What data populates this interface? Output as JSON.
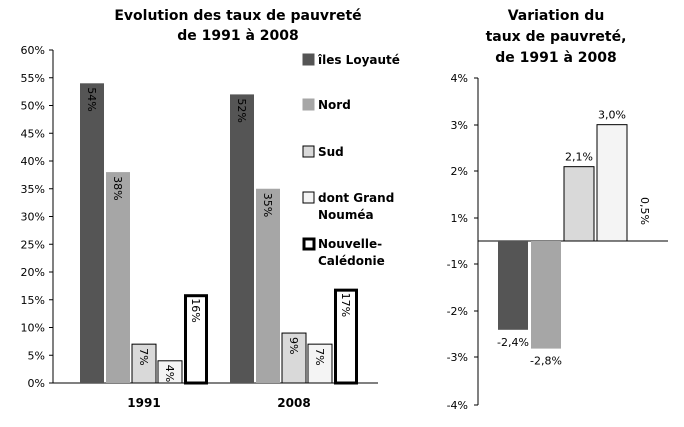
{
  "chart_data": [
    {
      "type": "bar",
      "title_lines": [
        "Evolution des taux de pauvreté",
        "de 1991 à 2008"
      ],
      "categories": [
        "1991",
        "2008"
      ],
      "ylim": [
        0,
        60
      ],
      "yticks": [
        "0%",
        "5%",
        "10%",
        "15%",
        "20%",
        "25%",
        "30%",
        "35%",
        "40%",
        "45%",
        "50%",
        "55%",
        "60%"
      ],
      "legend_position": "right",
      "series": [
        {
          "name": "îles Loyauté",
          "legend_lines": [
            "îles Loyauté"
          ],
          "color": "#555555",
          "style": "dark",
          "values": [
            54,
            52
          ],
          "labels": [
            "54%",
            "52%"
          ]
        },
        {
          "name": "Nord",
          "legend_lines": [
            "Nord"
          ],
          "color": "#a6a6a6",
          "style": "mid",
          "values": [
            38,
            35
          ],
          "labels": [
            "38%",
            "35%"
          ]
        },
        {
          "name": "Sud",
          "legend_lines": [
            "Sud"
          ],
          "color": "#d9d9d9",
          "style": "light",
          "values": [
            7,
            9
          ],
          "labels": [
            "7%",
            "9%"
          ]
        },
        {
          "name": "dont Grand Nouméa",
          "legend_lines": [
            "dont Grand",
            "Nouméa"
          ],
          "color": "#f4f4f4",
          "style": "white",
          "values": [
            4,
            7
          ],
          "labels": [
            "4%",
            "7%"
          ]
        },
        {
          "name": "Nouvelle-Calédonie",
          "legend_lines": [
            "Nouvelle-",
            "Calédonie"
          ],
          "color": "#ffffff",
          "style": "bold",
          "values": [
            16,
            17
          ],
          "labels": [
            "16%",
            "17%"
          ]
        }
      ]
    },
    {
      "type": "bar",
      "title_lines": [
        "Variation du",
        "taux de pauvreté,",
        "de 1991 à 2008"
      ],
      "yticks": [
        "-4%",
        "-3%",
        "-2%",
        "-1%",
        "1%",
        "2%",
        "3%",
        "4%"
      ],
      "series": [
        {
          "name": "îles Loyauté",
          "color": "#555555",
          "style": "dark",
          "value": -2.4,
          "label": "-2,4%"
        },
        {
          "name": "Nord",
          "color": "#a6a6a6",
          "style": "mid",
          "value": -2.8,
          "label": "-2,8%"
        },
        {
          "name": "Sud",
          "color": "#d9d9d9",
          "style": "light",
          "value": 2.1,
          "label": "2,1%"
        },
        {
          "name": "dont Grand Nouméa",
          "color": "#f4f4f4",
          "style": "white",
          "value": 3.0,
          "label": "3,0%"
        },
        {
          "name": "Nouvelle-Calédonie",
          "color": "#ffffff",
          "style": "bold",
          "value": 0.5,
          "label": "0,5%"
        }
      ]
    }
  ]
}
